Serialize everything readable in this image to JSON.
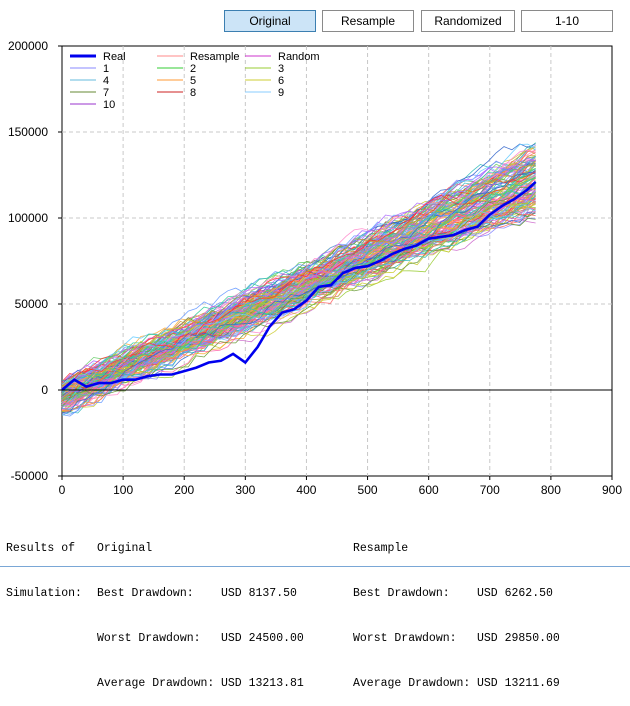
{
  "tabs": [
    {
      "label": "Original",
      "active": true
    },
    {
      "label": "Resample",
      "active": false
    },
    {
      "label": "Randomized",
      "active": false
    },
    {
      "label": "1-10",
      "active": false
    }
  ],
  "chart_data": {
    "type": "line",
    "xlim": [
      0,
      900
    ],
    "ylim": [
      -50000,
      200000
    ],
    "x_ticks": [
      "0",
      "100",
      "200",
      "300",
      "400",
      "500",
      "600",
      "700",
      "800",
      "900"
    ],
    "y_ticks": [
      "200000",
      "150000",
      "100000",
      "50000",
      "0",
      "-50000"
    ],
    "grid": true,
    "legend": {
      "placement": "top-left",
      "entries": [
        {
          "name": "Real",
          "color": "#0000ee"
        },
        {
          "name": "Resample",
          "color": "#ff8888"
        },
        {
          "name": "Random",
          "color": "#cc33cc"
        },
        {
          "name": "1",
          "color": "#8888ff"
        },
        {
          "name": "2",
          "color": "#33cc33"
        },
        {
          "name": "3",
          "color": "#99cc33"
        },
        {
          "name": "4",
          "color": "#66bbdd"
        },
        {
          "name": "5",
          "color": "#ff9933"
        },
        {
          "name": "6",
          "color": "#cccc33"
        },
        {
          "name": "7",
          "color": "#668833"
        },
        {
          "name": "8",
          "color": "#cc2222"
        },
        {
          "name": "9",
          "color": "#88ccff"
        },
        {
          "name": "10",
          "color": "#9933cc"
        }
      ]
    },
    "series": [
      {
        "name": "Real",
        "x": [
          0,
          20,
          40,
          60,
          80,
          100,
          120,
          140,
          160,
          180,
          200,
          220,
          240,
          260,
          280,
          300,
          320,
          340,
          360,
          380,
          400,
          420,
          440,
          460,
          480,
          500,
          520,
          540,
          560,
          580,
          600,
          620,
          640,
          660,
          680,
          700,
          720,
          740,
          760,
          775
        ],
        "values": [
          0,
          6000,
          2000,
          4000,
          4000,
          6000,
          6000,
          8000,
          9000,
          9000,
          11000,
          13000,
          16000,
          17000,
          21000,
          16000,
          25000,
          37000,
          45000,
          47000,
          52000,
          60000,
          61000,
          68000,
          71000,
          72000,
          75000,
          79000,
          82000,
          84000,
          88000,
          89000,
          90000,
          93000,
          95000,
          102000,
          107000,
          111000,
          116000,
          121000
        ]
      }
    ],
    "simulation_band": {
      "count": 140,
      "length": 775,
      "lower_start": -12000,
      "upper_start": 20000,
      "lower_end": 100000,
      "upper_end": 140000
    }
  },
  "results": {
    "heading": [
      "Results of",
      "Simulation:"
    ],
    "original": {
      "title": "Original",
      "best_label": "Best Drawdown:",
      "best_value": "USD 8137.50",
      "worst_label": "Worst Drawdown:",
      "worst_value": "USD 24500.00",
      "avg_label": "Average Drawdown:",
      "avg_value": "USD 13213.81"
    },
    "resample": {
      "title": "Resample",
      "best_label": "Best Drawdown:",
      "best_value": "USD 6262.50",
      "worst_label": "Worst Drawdown:",
      "worst_value": "USD 29850.00",
      "avg_label": "Average Drawdown:",
      "avg_value": "USD 13211.69"
    }
  }
}
